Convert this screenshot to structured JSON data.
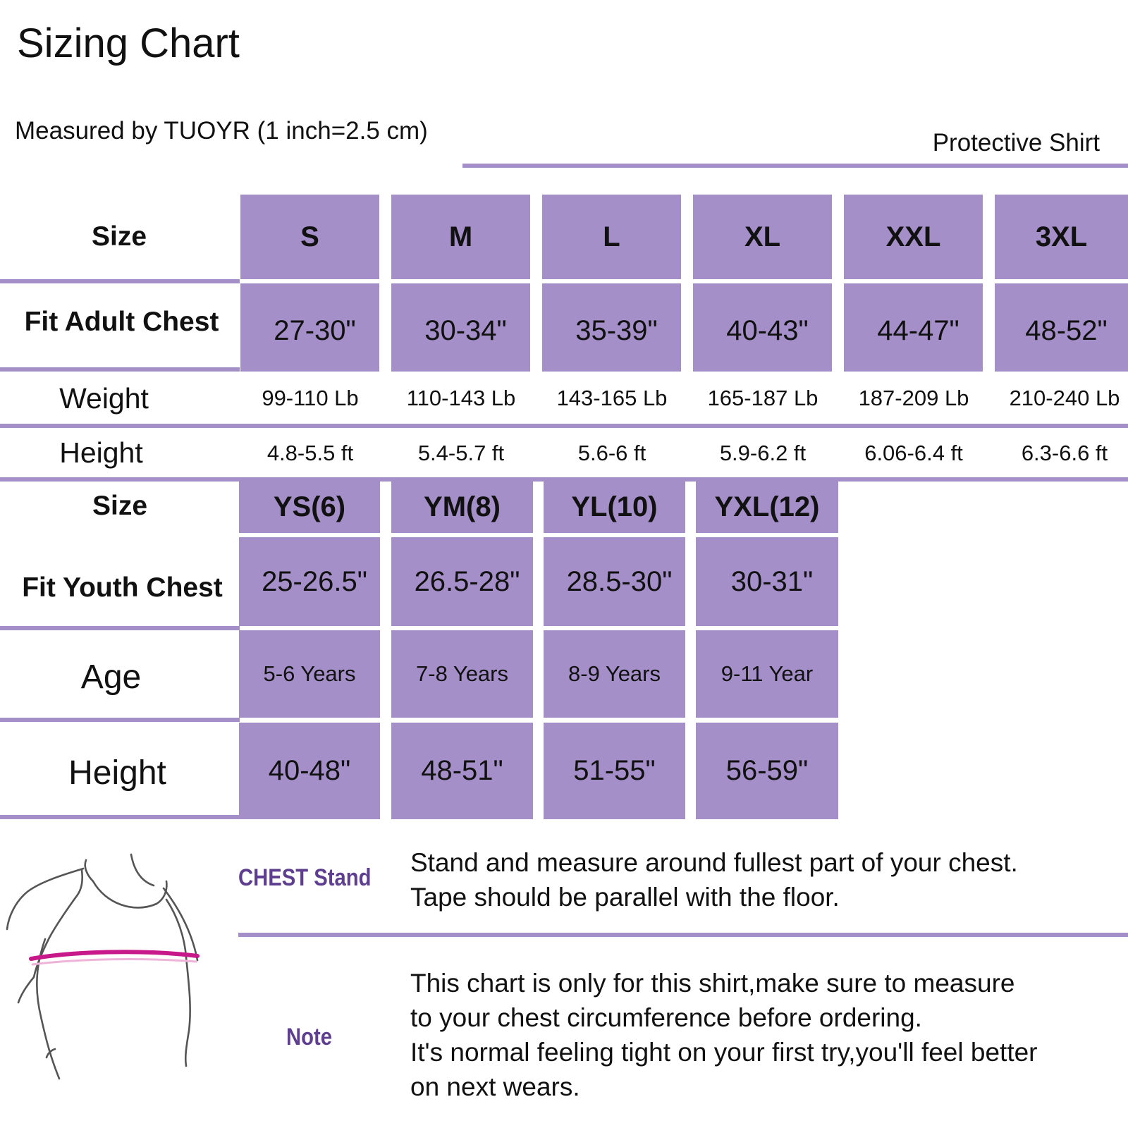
{
  "title": "Sizing Chart",
  "subtitle": "Measured by TUOYR (1 inch=2.5 cm)",
  "product": "Protective Shirt",
  "accent_color": "#a48fc8",
  "adult": {
    "size_label": "Size",
    "chest_label": "Fit Adult Chest",
    "weight_label": "Weight",
    "height_label": "Height",
    "sizes": [
      "S",
      "M",
      "L",
      "XL",
      "XXL",
      "3XL"
    ],
    "chest": [
      "27-30\"",
      "30-34\"",
      "35-39\"",
      "40-43\"",
      "44-47\"",
      "48-52\""
    ],
    "weight": [
      "99-110 Lb",
      "110-143 Lb",
      "143-165 Lb",
      "165-187 Lb",
      "187-209 Lb",
      "210-240 Lb"
    ],
    "height": [
      "4.8-5.5 ft",
      "5.4-5.7 ft",
      "5.6-6 ft",
      "5.9-6.2 ft",
      "6.06-6.4 ft",
      "6.3-6.6 ft"
    ]
  },
  "youth": {
    "size_label": "Size",
    "chest_label": "Fit Youth Chest",
    "age_label": "Age",
    "height_label": "Height",
    "sizes": [
      "YS(6)",
      "YM(8)",
      "YL(10)",
      "YXL(12)"
    ],
    "chest": [
      "25-26.5\"",
      "26.5-28\"",
      "28.5-30\"",
      "30-31\""
    ],
    "age": [
      "5-6  Years",
      "7-8  Years",
      "8-9  Years",
      "9-11 Year"
    ],
    "height": [
      "40-48\"",
      "48-51\"",
      "51-55\"",
      "56-59\""
    ]
  },
  "notes": {
    "chest_label": "CHEST Stand",
    "chest_lines": [
      "Stand and measure around fullest part of your chest.",
      "Tape should be parallel with the floor."
    ],
    "note_label": "Note",
    "note_lines": [
      "This chart is only for this shirt,make sure to measure",
      "to your chest circumference before ordering.",
      "It's normal feeling tight on your first try,you'll feel better",
      "on next wears."
    ]
  },
  "illustration": "torso-measurement-illustration"
}
